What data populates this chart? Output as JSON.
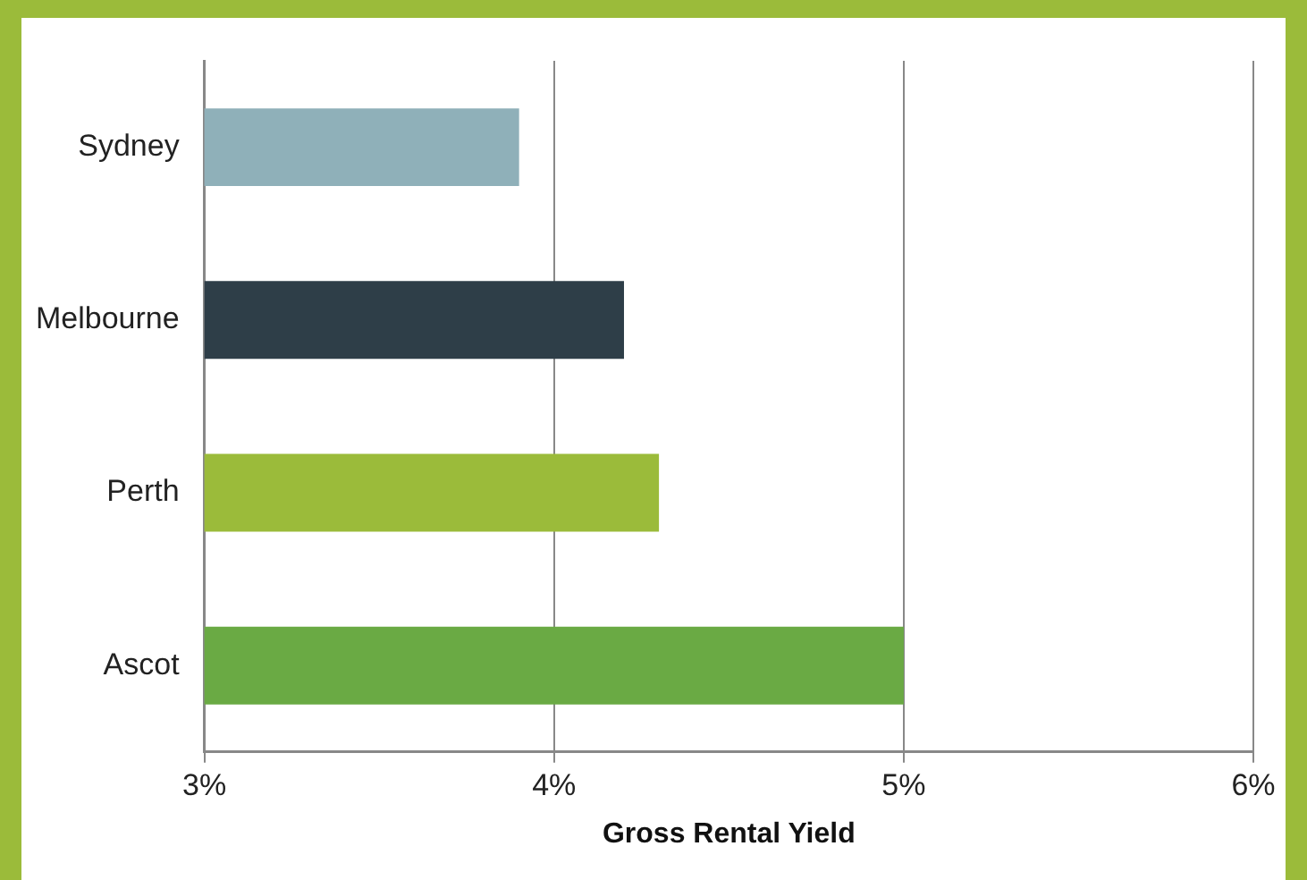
{
  "chart_data": {
    "type": "bar",
    "orientation": "horizontal",
    "xlabel": "Gross Rental Yield",
    "categories": [
      "Sydney",
      "Melbourne",
      "Perth",
      "Ascot"
    ],
    "values": [
      3.9,
      4.2,
      4.3,
      5.0
    ],
    "colors": [
      "#8fb0b9",
      "#2e3e48",
      "#9bbb3a",
      "#6aaa44"
    ],
    "xlim": [
      3,
      6
    ],
    "xticks": [
      {
        "value": 3,
        "label": "3%"
      },
      {
        "value": 4,
        "label": "4%"
      },
      {
        "value": 5,
        "label": "5%"
      },
      {
        "value": 6,
        "label": "6%"
      }
    ],
    "grid": "x",
    "legend": false
  }
}
